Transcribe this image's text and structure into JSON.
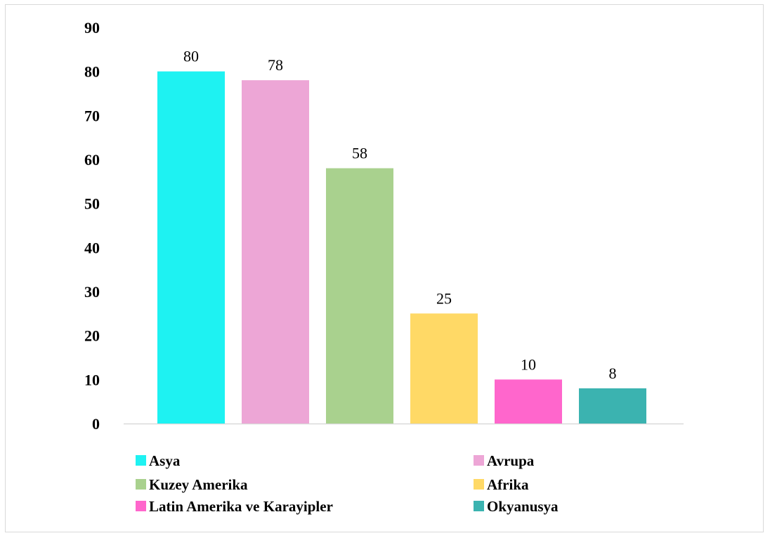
{
  "chart_data": {
    "type": "bar",
    "categories": [
      "Asya",
      "Avrupa",
      "Kuzey Amerika",
      "Afrika",
      "Latin Amerika ve Karayipler",
      "Okyanusya"
    ],
    "values": [
      80,
      78,
      58,
      25,
      10,
      8
    ],
    "colors": [
      "#1ef2f2",
      "#eda6d6",
      "#a9d18e",
      "#ffd966",
      "#ff66cc",
      "#3bb3b0"
    ],
    "data_labels": [
      "80",
      "78",
      "58",
      "25",
      "10",
      "8"
    ],
    "y_ticks": [
      "0",
      "10",
      "20",
      "30",
      "40",
      "50",
      "60",
      "70",
      "80",
      "90"
    ],
    "ylim": [
      0,
      90
    ],
    "grid": false,
    "legend": {
      "placement": "bottom",
      "columns": 2,
      "entries": [
        "Asya",
        "Avrupa",
        "Kuzey Amerika",
        "Afrika",
        "Latin Amerika ve Karayipler",
        "Okyanusya"
      ]
    },
    "title": "",
    "xlabel": "",
    "ylabel": ""
  }
}
